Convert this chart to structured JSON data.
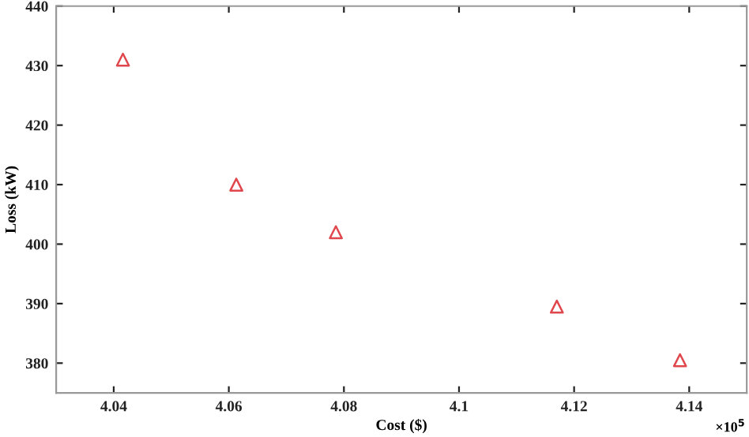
{
  "chart_data": {
    "type": "scatter",
    "xlabel": "Cost ($)",
    "ylabel": "Loss (kW)",
    "x": [
      4.0416,
      4.0613,
      4.0786,
      4.117,
      4.1384
    ],
    "series": [
      {
        "color": "#e0474c",
        "values": [
          431,
          410,
          402,
          389.5,
          380.5
        ]
      }
    ],
    "marker": "triangle",
    "grid": false,
    "xlim": [
      4.03,
      4.15
    ],
    "xticks": [
      4.04,
      4.06,
      4.08,
      4.1,
      4.12,
      4.14
    ],
    "ylim": [
      375,
      440
    ],
    "yticks": [
      380,
      390,
      400,
      410,
      420,
      430,
      440
    ],
    "annotations": [
      "×10$^{5}$"
    ]
  }
}
